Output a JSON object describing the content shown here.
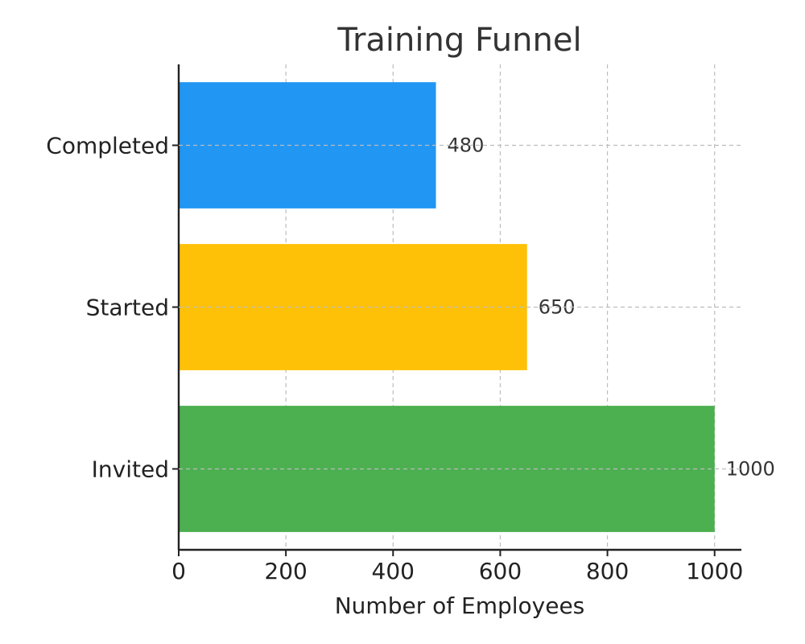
{
  "chart_data": {
    "type": "bar",
    "orientation": "horizontal",
    "title": "Training Funnel",
    "xlabel": "Number of Employees",
    "ylabel": "",
    "categories": [
      "Invited",
      "Started",
      "Completed"
    ],
    "values": [
      1000,
      650,
      480
    ],
    "colors": [
      "#4caf50",
      "#ffc107",
      "#2196f3"
    ],
    "xlim": [
      0,
      1050
    ],
    "xticks": [
      0,
      200,
      400,
      600,
      800,
      1000
    ],
    "grid": true,
    "data_labels": [
      "1000",
      "650",
      "480"
    ]
  }
}
